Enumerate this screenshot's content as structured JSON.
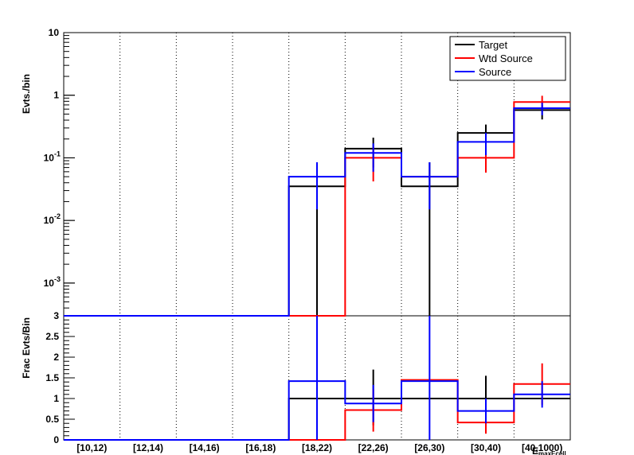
{
  "chart_data": [
    {
      "type": "line",
      "subtype": "step-histogram",
      "panel": "top",
      "ylabel": "Evts./bin",
      "yscale": "log",
      "ylim": [
        0.0003,
        10
      ],
      "ytick_labels": [
        {
          "value": 10,
          "base": "10",
          "exp": ""
        },
        {
          "value": 1,
          "base": "1",
          "exp": ""
        },
        {
          "value": 0.1,
          "base": "10",
          "exp": "-1"
        },
        {
          "value": 0.01,
          "base": "10",
          "exp": "-2"
        },
        {
          "value": 0.001,
          "base": "10",
          "exp": "-3"
        }
      ],
      "categories": [
        "[10,12)",
        "[12,14)",
        "[14,16)",
        "[16,18)",
        "[18,22)",
        "[22,26)",
        "[26,30)",
        "[30,40)",
        "[40,1000)"
      ],
      "grid": "vertical-dotted",
      "legend_position": "top-right",
      "series": [
        {
          "name": "Target",
          "color": "#000000",
          "values": [
            0,
            0,
            0,
            0,
            0.035,
            0.14,
            0.035,
            0.25,
            0.58
          ],
          "err_low": [
            0,
            0,
            0,
            0,
            0.035,
            0.07,
            0.035,
            0.11,
            0.17
          ],
          "err_high": [
            0,
            0,
            0,
            0,
            0.05,
            0.07,
            0.05,
            0.09,
            0.12
          ]
        },
        {
          "name": "Wtd Source",
          "color": "#ff0000",
          "values": [
            0,
            0,
            0,
            0,
            0,
            0.1,
            0.05,
            0.1,
            0.78
          ],
          "err_low": [
            0,
            0,
            0,
            0,
            0,
            0.058,
            0,
            0.042,
            0.18
          ],
          "err_high": [
            0,
            0,
            0,
            0,
            0,
            0.05,
            0,
            0.04,
            0.2
          ]
        },
        {
          "name": "Source",
          "color": "#0000ff",
          "values": [
            0,
            0,
            0,
            0,
            0.05,
            0.12,
            0.05,
            0.18,
            0.62
          ],
          "err_low": [
            0,
            0,
            0,
            0,
            0.035,
            0.06,
            0.035,
            0.07,
            0.14
          ],
          "err_high": [
            0,
            0,
            0,
            0,
            0.035,
            0.05,
            0.035,
            0.07,
            0.14
          ]
        }
      ]
    },
    {
      "type": "line",
      "subtype": "step-histogram",
      "panel": "bottom",
      "ylabel": "Frac Evts/Bin",
      "xlabel": "E_maxEcell",
      "ylim": [
        0,
        3
      ],
      "ytick_labels": [
        "0",
        "0.5",
        "1",
        "1.5",
        "2",
        "2.5",
        "3"
      ],
      "categories": [
        "[10,12)",
        "[12,14)",
        "[14,16)",
        "[16,18)",
        "[18,22)",
        "[22,26)",
        "[26,30)",
        "[30,40)",
        "[40,1000)"
      ],
      "series": [
        {
          "name": "Target",
          "color": "#000000",
          "values": [
            0,
            0,
            0,
            0,
            1,
            1,
            1,
            1,
            1
          ],
          "err_low": [
            0,
            0,
            0,
            0,
            0,
            0.65,
            0,
            0.55,
            0
          ],
          "err_high": [
            0,
            0,
            0,
            0,
            0,
            0.7,
            0,
            0.55,
            0
          ]
        },
        {
          "name": "Wtd Source",
          "color": "#ff0000",
          "values": [
            0,
            0,
            0,
            0,
            0,
            0.72,
            1.45,
            0.42,
            1.35
          ],
          "err_low": [
            0,
            0,
            0,
            0,
            0,
            0.52,
            0,
            0.27,
            0.5
          ],
          "err_high": [
            0,
            0,
            0,
            0,
            0,
            0.5,
            0,
            0.27,
            0.5
          ]
        },
        {
          "name": "Source",
          "color": "#0000ff",
          "values": [
            0,
            0,
            0,
            0,
            1.42,
            0.88,
            1.42,
            0.7,
            1.1
          ],
          "err_low": [
            0,
            0,
            0,
            0,
            1.42,
            0.45,
            1.42,
            0.3,
            0.32
          ],
          "err_high": [
            0,
            0,
            0,
            0,
            1.6,
            0.45,
            1.6,
            0.3,
            0.32
          ]
        }
      ]
    }
  ]
}
